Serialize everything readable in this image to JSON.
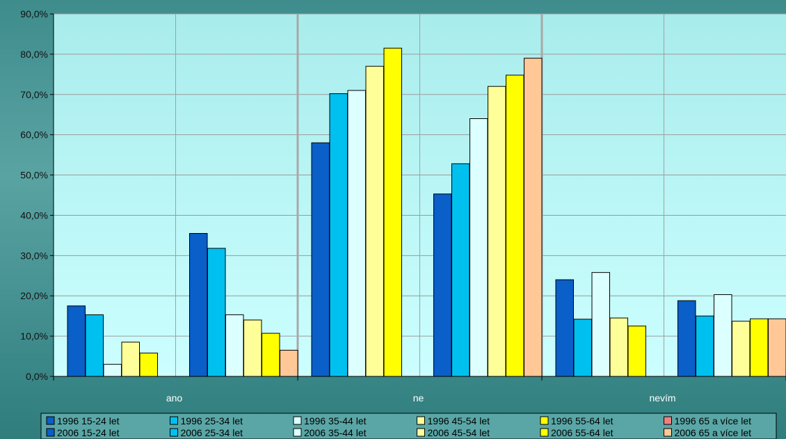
{
  "chart_data": {
    "type": "bar",
    "ylim": [
      0,
      90
    ],
    "y_ticks": [
      "0,0%",
      "10,0%",
      "20,0%",
      "30,0%",
      "40,0%",
      "50,0%",
      "60,0%",
      "70,0%",
      "80,0%",
      "90,0%"
    ],
    "y_tick_values": [
      0,
      10,
      20,
      30,
      40,
      50,
      60,
      70,
      80,
      90
    ],
    "categories": [
      "ano",
      "ne",
      "nevím"
    ],
    "grid": true,
    "legend_position": "bottom",
    "series": [
      {
        "name": "1996 15-24 let",
        "year": "1996",
        "color": "#0a5fc8",
        "values": [
          17.5,
          58.0,
          24.0
        ]
      },
      {
        "name": "1996 25-34 let",
        "year": "1996",
        "color": "#00c0f0",
        "values": [
          15.3,
          70.2,
          14.2
        ]
      },
      {
        "name": "1996 35-44 let",
        "year": "1996",
        "color": "#dcffff",
        "values": [
          3.0,
          71.0,
          25.8
        ]
      },
      {
        "name": "1996 45-54 let",
        "year": "1996",
        "color": "#ffff99",
        "values": [
          8.5,
          77.0,
          14.5
        ]
      },
      {
        "name": "1996 55-64 let",
        "year": "1996",
        "color": "#ffff00",
        "values": [
          5.8,
          81.5,
          12.5
        ]
      },
      {
        "name": "1996 65 a více let",
        "year": "1996",
        "color": "#f08080",
        "values": [
          null,
          null,
          null
        ]
      },
      {
        "name": "2006 15-24 let",
        "year": "2006",
        "color": "#0a5fc8",
        "values": [
          35.5,
          45.3,
          18.8
        ]
      },
      {
        "name": "2006 25-34 let",
        "year": "2006",
        "color": "#00c0f0",
        "values": [
          31.8,
          52.8,
          15.0
        ]
      },
      {
        "name": "2006 35-44 let",
        "year": "2006",
        "color": "#dcffff",
        "values": [
          15.3,
          64.0,
          20.3
        ]
      },
      {
        "name": "2006 45-54 let",
        "year": "2006",
        "color": "#ffff99",
        "values": [
          14.0,
          72.0,
          13.7
        ]
      },
      {
        "name": "2006 55-64 let",
        "year": "2006",
        "color": "#ffff00",
        "values": [
          10.7,
          74.8,
          14.3
        ]
      },
      {
        "name": "2006 65 a více let",
        "year": "2006",
        "color": "#ffc896",
        "values": [
          6.5,
          79.0,
          14.3
        ]
      }
    ]
  },
  "colors": {
    "plot_top": "#a9ecec",
    "plot_bottom": "#ccffff",
    "outer_background": "#4a9898"
  }
}
